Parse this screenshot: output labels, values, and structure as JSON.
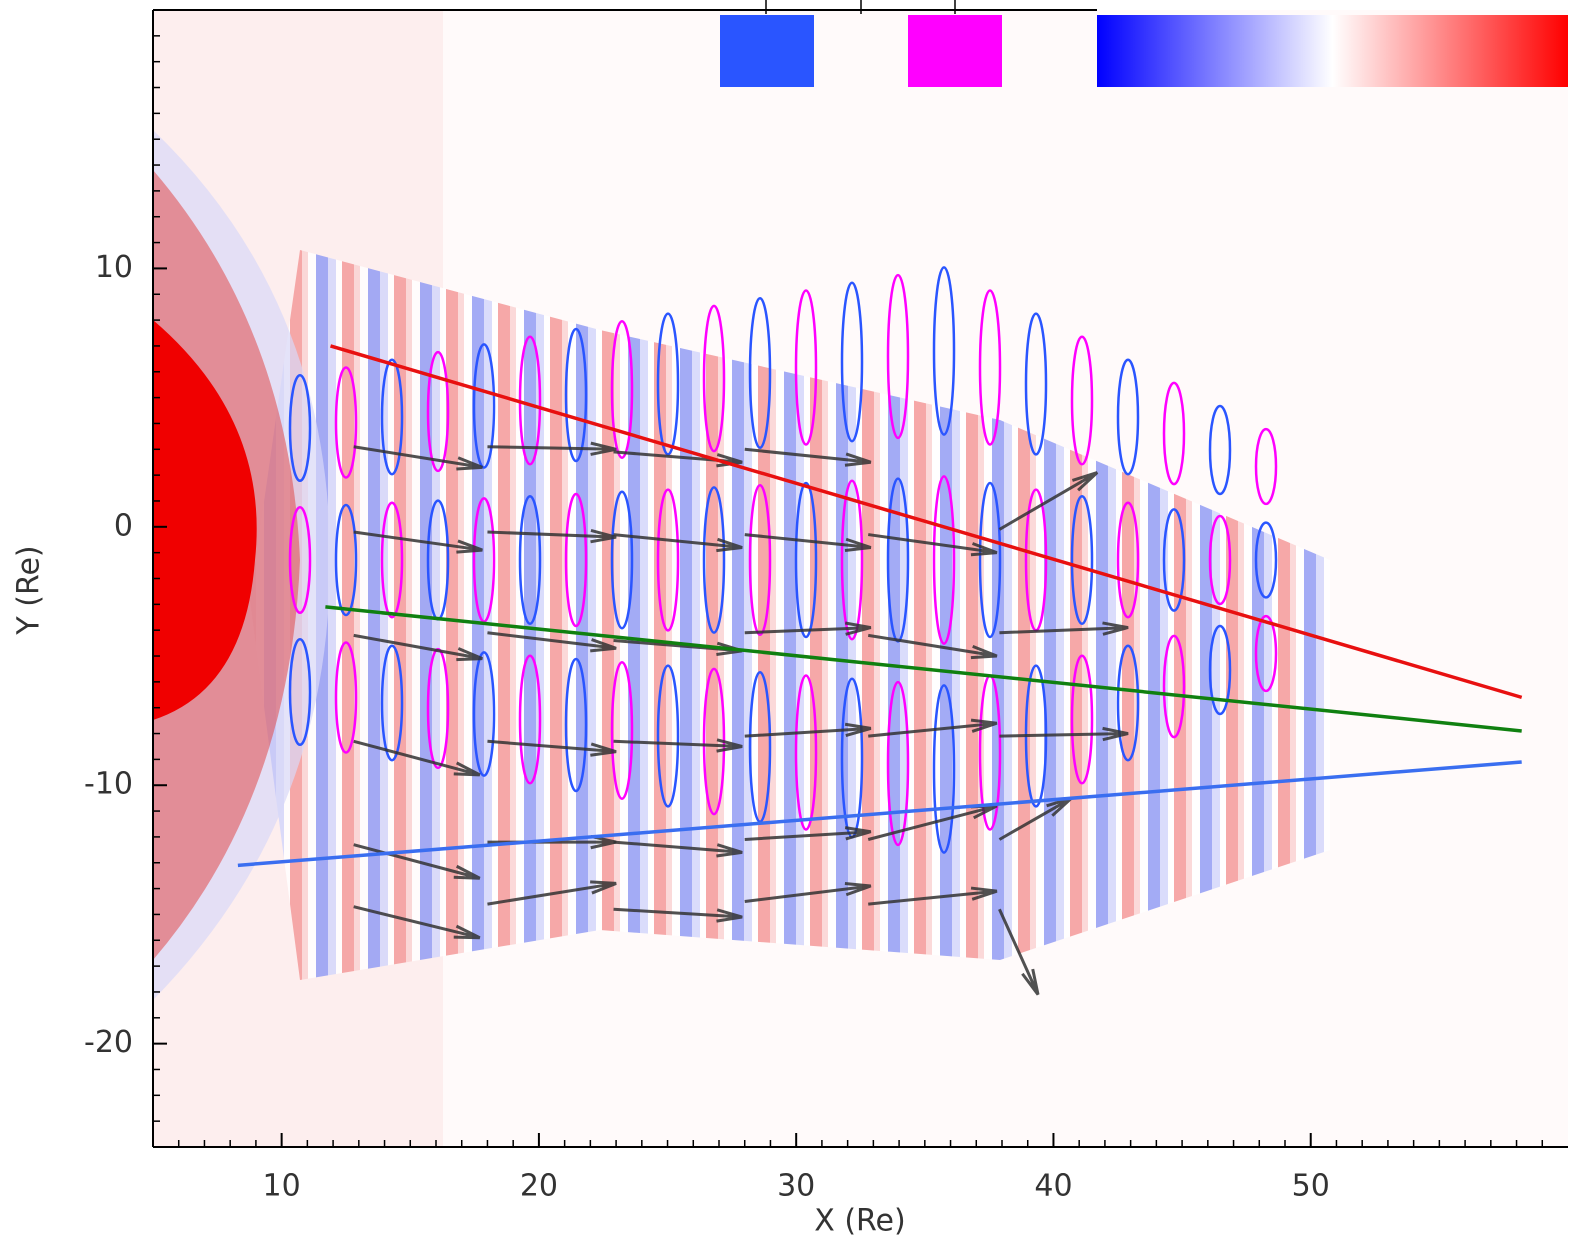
{
  "chart_data": {
    "type": "quiver",
    "xlabel": "X (Re)",
    "ylabel": "Y (Re)",
    "xlim": [
      5,
      60
    ],
    "ylim": [
      -24,
      20
    ],
    "xticks": [
      10,
      20,
      30,
      40,
      50
    ],
    "yticks": [
      -20,
      -10,
      0,
      10
    ],
    "xminorticks": [
      6,
      7,
      8,
      9,
      11,
      12,
      13,
      14,
      15,
      16,
      17,
      18,
      19,
      21,
      22,
      23,
      24,
      25,
      26,
      27,
      28,
      29,
      31,
      32,
      33,
      34,
      35,
      36,
      37,
      38,
      39,
      41,
      42,
      43,
      44,
      45,
      46,
      47,
      48,
      49,
      51,
      52,
      53,
      54,
      55,
      56,
      57,
      58,
      59
    ],
    "yminorticks": [
      -23,
      -22,
      -21,
      -19,
      -18,
      -17,
      -16,
      -15,
      -14,
      -13,
      -12,
      -11,
      -9,
      -8,
      -7,
      -6,
      -5,
      -4,
      -3,
      -2,
      -1,
      1,
      2,
      3,
      4,
      5,
      6,
      7,
      8,
      9,
      11,
      12,
      13,
      14,
      15,
      16,
      17,
      18,
      19
    ],
    "series": [
      {
        "color": "#e81010",
        "x": [
          11.9,
          58.2
        ],
        "values": [
          7.0,
          -6.6
        ]
      },
      {
        "color": "#108010",
        "x": [
          11.7,
          58.2
        ],
        "values": [
          -3.1,
          -7.9
        ]
      },
      {
        "color": "#3a6ef0",
        "x": [
          8.3,
          58.2
        ],
        "values": [
          -13.1,
          -9.1
        ]
      }
    ],
    "arrows": {
      "color": "#333333",
      "x": [
        12.8,
        18.0,
        22.9,
        28.0,
        12.8,
        18.0,
        22.9,
        28.0,
        32.8,
        37.9,
        12.8,
        18.0,
        22.9,
        28.0,
        32.8,
        37.9,
        12.8,
        18.0,
        22.9,
        28.0,
        32.8,
        37.9,
        12.8,
        18.0,
        22.9,
        28.0,
        32.8,
        37.9,
        12.8,
        18.0,
        22.9,
        28.0,
        32.8,
        37.9
      ],
      "y": [
        3.1,
        3.1,
        2.9,
        3.0,
        -0.2,
        -0.2,
        -0.3,
        -0.3,
        -0.3,
        -0.1,
        -4.2,
        -4.1,
        -4.4,
        -4.1,
        -4.2,
        -4.1,
        -8.3,
        -8.3,
        -8.3,
        -8.1,
        -8.1,
        -8.1,
        -12.3,
        -12.2,
        -12.2,
        -12.1,
        -12.1,
        -12.1,
        -14.7,
        -14.6,
        -14.8,
        -14.5,
        -14.6,
        -14.8
      ],
      "u": [
        5.0,
        5.0,
        5.0,
        4.9,
        5.0,
        5.0,
        5.0,
        4.9,
        5.0,
        3.8,
        5.0,
        5.0,
        5.0,
        4.9,
        5.0,
        5.0,
        4.9,
        5.0,
        5.0,
        4.9,
        5.0,
        5.0,
        4.9,
        5.0,
        5.0,
        4.9,
        5.0,
        2.8,
        4.9,
        5.0,
        5.0,
        4.9,
        5.0,
        1.5
      ],
      "v": [
        -0.8,
        -0.1,
        -0.4,
        -0.5,
        -0.7,
        -0.2,
        -0.5,
        -0.5,
        -0.7,
        2.2,
        -0.9,
        -0.6,
        -0.4,
        0.2,
        -0.8,
        0.2,
        -1.3,
        -0.4,
        -0.2,
        0.3,
        0.5,
        0.1,
        -1.3,
        0,
        -0.4,
        0.3,
        1.3,
        1.6,
        -1.2,
        0.8,
        -0.3,
        0.6,
        0.5,
        -3.3
      ]
    },
    "contour_colors": [
      "#2a55ff",
      "#ff00ff"
    ],
    "colorbar": [
      "#0000ff",
      "#ffffff",
      "#ff0000"
    ]
  }
}
